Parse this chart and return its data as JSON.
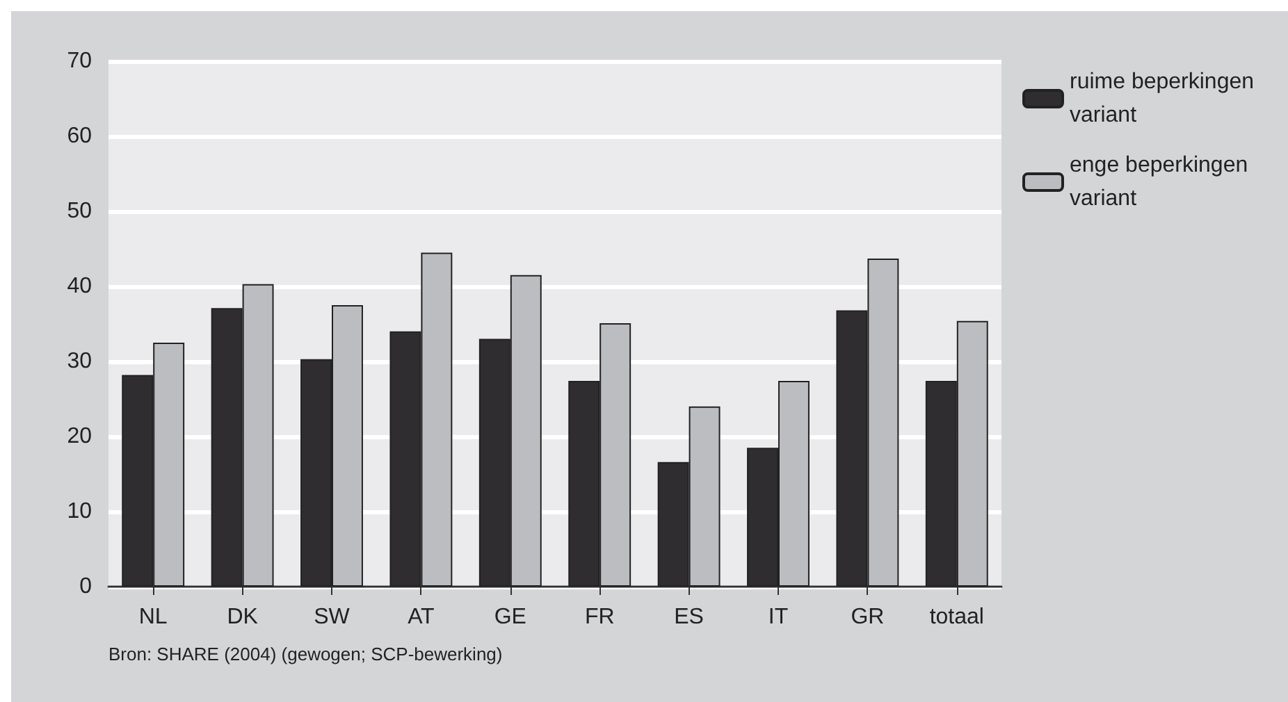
{
  "chart_data": {
    "type": "bar",
    "categories": [
      "NL",
      "DK",
      "SW",
      "AT",
      "GE",
      "FR",
      "ES",
      "IT",
      "GR",
      "totaal"
    ],
    "series": [
      {
        "name": "ruime beperkingen variant",
        "color": "#2f2d2f",
        "values": [
          28.2,
          37.1,
          30.3,
          34.0,
          33.0,
          27.4,
          16.6,
          18.5,
          36.8,
          27.4
        ]
      },
      {
        "name": "enge beperkingen variant",
        "color": "#bcbdc0",
        "values": [
          32.5,
          40.3,
          37.5,
          44.5,
          41.5,
          35.1,
          24.0,
          27.4,
          43.7,
          35.4
        ]
      }
    ],
    "ylim": [
      0,
      70
    ],
    "yticks": [
      0,
      10,
      20,
      30,
      40,
      50,
      60,
      70
    ],
    "grid": "y",
    "legend": "top right",
    "annotations": [
      "Bron: SHARE (2004) (gewogen; SCP-bewerking)"
    ]
  }
}
